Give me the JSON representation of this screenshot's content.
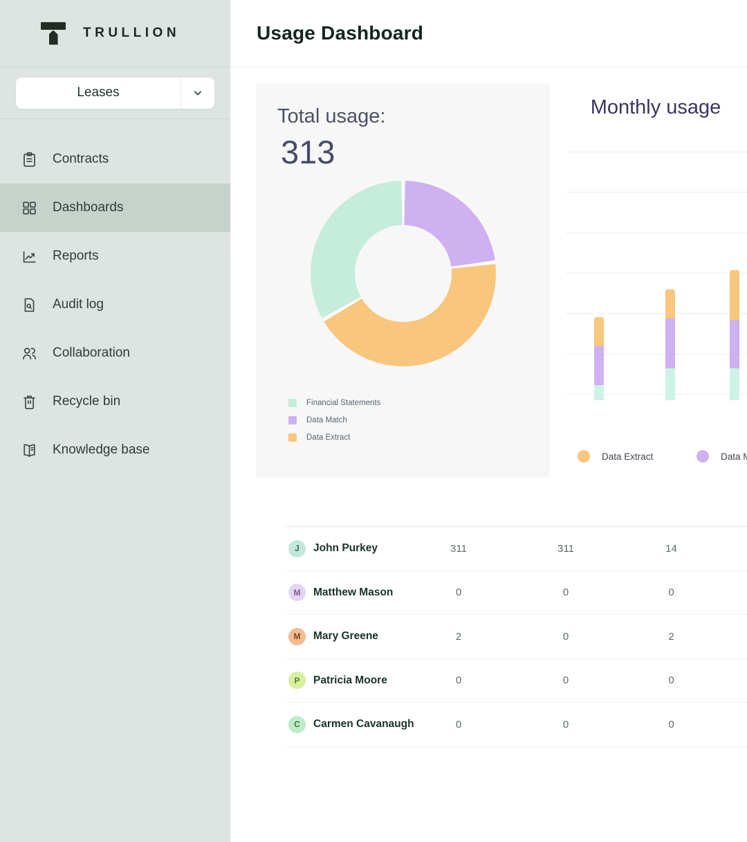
{
  "sidebar": {
    "brand": "TRULLION",
    "workspace_selector": {
      "value": "Leases"
    },
    "items": [
      {
        "label": "Contracts",
        "icon": "clipboard-icon",
        "active": false
      },
      {
        "label": "Dashboards",
        "icon": "grid-icon",
        "active": true
      },
      {
        "label": "Reports",
        "icon": "line-chart-icon",
        "active": false
      },
      {
        "label": "Audit log",
        "icon": "audit-doc-icon",
        "active": false
      },
      {
        "label": "Collaboration",
        "icon": "people-icon",
        "active": false
      },
      {
        "label": "Recycle bin",
        "icon": "trash-icon",
        "active": false
      },
      {
        "label": "Knowledge base",
        "icon": "book-icon",
        "active": false
      }
    ]
  },
  "header": {
    "title": "Usage Dashboard"
  },
  "chart_data": [
    {
      "type": "pie",
      "subtype": "donut",
      "title": "Total usage:",
      "total": "313",
      "slices": [
        {
          "label": "Data Match",
          "color": "#cfb0f0",
          "start_deg": 0,
          "end_deg": 83,
          "pct_est": 23
        },
        {
          "label": "Data Extract",
          "color": "#f9c67d",
          "start_deg": 83,
          "end_deg": 240,
          "pct_est": 44
        },
        {
          "label": "Financial Statements",
          "color": "#c6ecdc",
          "start_deg": 240,
          "end_deg": 360,
          "pct_est": 33
        }
      ],
      "legend": [
        {
          "label": "Financial Statements",
          "color": "#c6ecdc"
        },
        {
          "label": "Data Match",
          "color": "#cfb0f0"
        },
        {
          "label": "Data Extract",
          "color": "#f9c67d"
        }
      ],
      "legend_position": "bottom-left",
      "gap_color": "#fafafb"
    },
    {
      "type": "bar",
      "subtype": "stacked",
      "title": "Monthly usage",
      "series_order": [
        "Financial Statements",
        "Data Match",
        "Data Extract"
      ],
      "series_colors": {
        "Financial Statements": "#cdf3e4",
        "Data Match": "#cfb0f0",
        "Data Extract": "#f9c67d"
      },
      "bars_estimated_units": [
        {
          "Financial Statements": 22,
          "Data Match": 56,
          "Data Extract": 42
        },
        {
          "Financial Statements": 46,
          "Data Match": 72,
          "Data Extract": 42
        },
        {
          "Financial Statements": 46,
          "Data Match": 70,
          "Data Extract": 72
        }
      ],
      "x_tick_labels_visible": false,
      "y_tick_labels_visible": false,
      "grid": true,
      "gridline_count": 7,
      "legend": [
        {
          "label": "Data Extract",
          "color": "#f9c67d"
        },
        {
          "label": "Data Match",
          "color": "#cfb0f0"
        }
      ],
      "legend_position": "bottom",
      "clipped_at_right_edge": true
    }
  ],
  "table": {
    "rows": [
      {
        "initial": "J",
        "name": "John Purkey",
        "avatar_bg": "#c2e8d9",
        "avatar_color": "#356b5d",
        "values": [
          "311",
          "311",
          "14"
        ]
      },
      {
        "initial": "M",
        "name": "Matthew Mason",
        "avatar_bg": "#e5d3f4",
        "avatar_color": "#6f6383",
        "values": [
          "0",
          "0",
          "0"
        ]
      },
      {
        "initial": "M",
        "name": "Mary Greene",
        "avatar_bg": "#f5ba8f",
        "avatar_color": "#6e4a2a",
        "values": [
          "2",
          "0",
          "2"
        ]
      },
      {
        "initial": "P",
        "name": "Patricia Moore",
        "avatar_bg": "#d7ef9e",
        "avatar_color": "#5d7a31",
        "values": [
          "0",
          "0",
          "0"
        ]
      },
      {
        "initial": "C",
        "name": "Carmen Cavanaugh",
        "avatar_bg": "#bfecc6",
        "avatar_color": "#377a46",
        "values": [
          "0",
          "0",
          "0"
        ]
      }
    ]
  },
  "colors": {
    "sidebar_bg": "#dee4e1",
    "sidebar_active_bg": "#c8d2cd",
    "card_bg": "#f7f7f8",
    "page_title": "#14241e",
    "donut_heading": "#4c5069",
    "monthly_heading": "#3a3660",
    "table_number": "#5d6a66"
  }
}
